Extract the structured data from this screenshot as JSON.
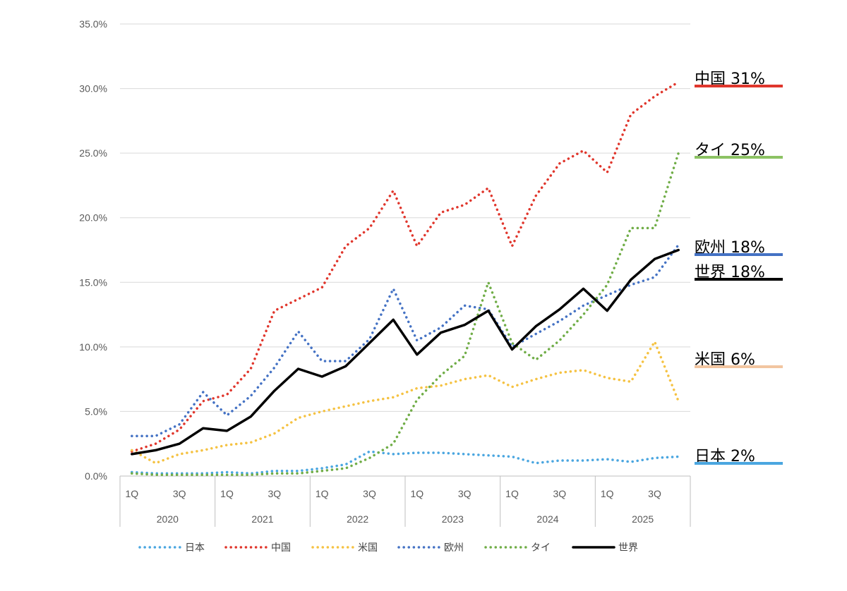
{
  "chart_data": {
    "type": "line",
    "title": "",
    "xlabel": "",
    "ylabel": "",
    "ylim": [
      0,
      35
    ],
    "yticks": [
      "0.0%",
      "5.0%",
      "10.0%",
      "15.0%",
      "20.0%",
      "25.0%",
      "30.0%",
      "35.0%"
    ],
    "x_quarter_labels": [
      "1Q",
      "",
      "3Q",
      "",
      "1Q",
      "",
      "3Q",
      "",
      "1Q",
      "",
      "3Q",
      "",
      "1Q",
      "",
      "3Q",
      "",
      "1Q",
      "",
      "3Q",
      "",
      "1Q",
      "",
      "3Q",
      ""
    ],
    "years": [
      "2020",
      "2021",
      "2022",
      "2023",
      "2024",
      "2025"
    ],
    "series": [
      {
        "name": "日本",
        "color": "#4aa6e0",
        "style": "dotted",
        "values": [
          0.3,
          0.2,
          0.2,
          0.2,
          0.3,
          0.2,
          0.4,
          0.4,
          0.6,
          0.9,
          1.9,
          1.7,
          1.8,
          1.8,
          1.7,
          1.6,
          1.5,
          1.0,
          1.2,
          1.2,
          1.3,
          1.1,
          1.4,
          1.5
        ],
        "end_label": "日本  2%",
        "end_color": "#4aa6e0"
      },
      {
        "name": "中国",
        "color": "#e0362c",
        "style": "dotted",
        "values": [
          1.9,
          2.5,
          3.6,
          5.8,
          6.3,
          8.3,
          12.8,
          13.7,
          14.6,
          17.8,
          19.2,
          22.1,
          17.8,
          20.4,
          21.0,
          22.3,
          17.8,
          21.7,
          24.2,
          25.2,
          23.5,
          28.0,
          29.4,
          30.5
        ],
        "end_label": "中国  31%",
        "end_color": "#e0362c"
      },
      {
        "name": "米国",
        "color": "#f5c242",
        "style": "dotted",
        "values": [
          2.0,
          1.0,
          1.7,
          2.0,
          2.4,
          2.6,
          3.3,
          4.5,
          5.0,
          5.4,
          5.8,
          6.1,
          6.8,
          7.0,
          7.5,
          7.8,
          6.9,
          7.5,
          8.0,
          8.2,
          7.6,
          7.3,
          10.4,
          5.8
        ],
        "end_label": "米国  6%",
        "end_color": "#f2c5a0"
      },
      {
        "name": "欧州",
        "color": "#4472c4",
        "style": "dotted",
        "values": [
          3.1,
          3.1,
          4.0,
          6.5,
          4.7,
          6.2,
          8.4,
          11.2,
          8.9,
          8.9,
          10.6,
          14.5,
          10.5,
          11.5,
          13.2,
          12.9,
          10.0,
          11.0,
          12.0,
          13.2,
          14.0,
          14.8,
          15.4,
          17.9
        ],
        "end_label": "欧州  18%",
        "end_color": "#4472c4"
      },
      {
        "name": "タイ",
        "color": "#70ad47",
        "style": "dotted",
        "values": [
          0.2,
          0.1,
          0.1,
          0.1,
          0.1,
          0.1,
          0.2,
          0.2,
          0.4,
          0.6,
          1.4,
          2.5,
          5.9,
          7.8,
          9.3,
          15.0,
          10.3,
          9.0,
          10.5,
          12.5,
          14.8,
          19.2,
          19.2,
          25.0
        ],
        "end_label": "タイ  25%",
        "end_color": "#8cc263"
      },
      {
        "name": "世界",
        "color": "#000000",
        "style": "solid",
        "values": [
          1.7,
          2.0,
          2.5,
          3.7,
          3.5,
          4.6,
          6.6,
          8.3,
          7.7,
          8.5,
          10.3,
          12.1,
          9.4,
          11.1,
          11.7,
          12.8,
          9.8,
          11.6,
          12.9,
          14.5,
          12.8,
          15.2,
          16.8,
          17.5
        ],
        "end_label": "世界  18%",
        "end_color": "#000000"
      }
    ],
    "legend_position": "bottom"
  }
}
